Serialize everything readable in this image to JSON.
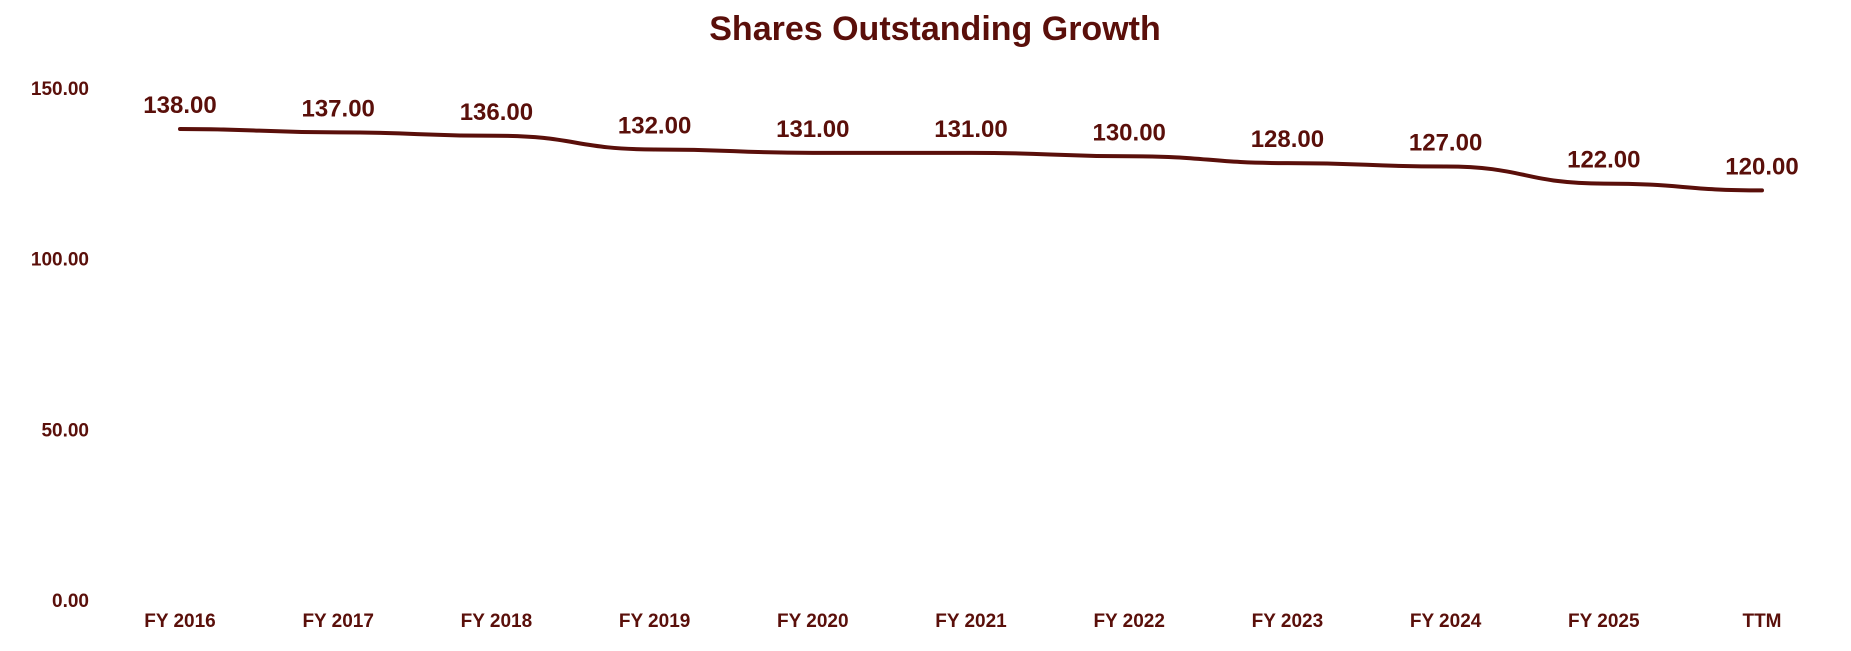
{
  "colors": {
    "primary": "#5a0f0a",
    "background": "#ffffff"
  },
  "chart_data": {
    "type": "line",
    "title": "Shares Outstanding Growth",
    "xlabel": "",
    "ylabel": "",
    "categories": [
      "FY 2016",
      "FY 2017",
      "FY 2018",
      "FY 2019",
      "FY 2020",
      "FY 2021",
      "FY 2022",
      "FY 2023",
      "FY 2024",
      "FY 2025",
      "TTM"
    ],
    "series": [
      {
        "values": [
          138.0,
          137.0,
          136.0,
          132.0,
          131.0,
          131.0,
          130.0,
          128.0,
          127.0,
          122.0,
          120.0
        ]
      }
    ],
    "data_labels": [
      "138.00",
      "137.00",
      "136.00",
      "132.00",
      "131.00",
      "131.00",
      "130.00",
      "128.00",
      "127.00",
      "122.00",
      "120.00"
    ],
    "ylim": [
      0,
      150
    ],
    "y_ticks": [
      0,
      50,
      100,
      150
    ],
    "y_tick_labels": [
      "0.00",
      "50.00",
      "100.00",
      "150.00"
    ],
    "grid": false,
    "legend": "none",
    "smooth": true
  }
}
